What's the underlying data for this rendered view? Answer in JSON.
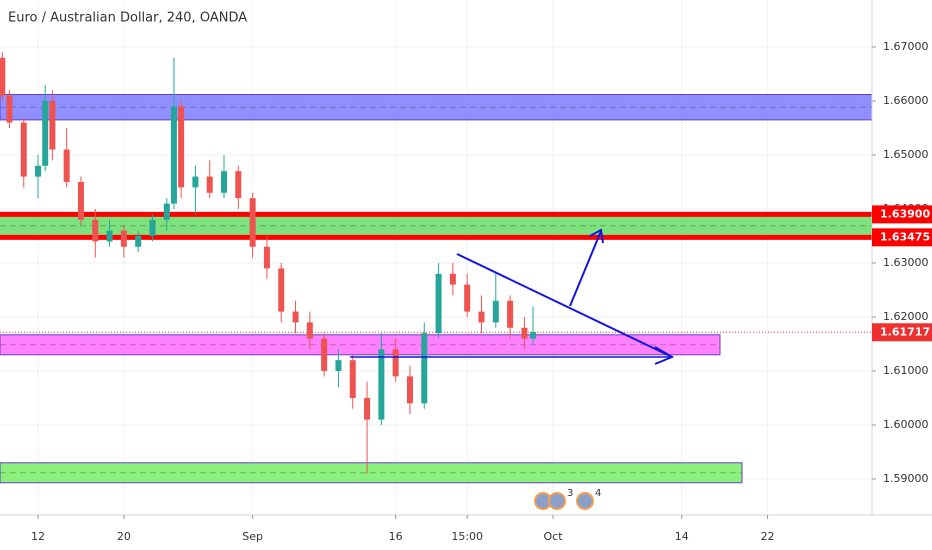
{
  "chart_data": {
    "type": "candlestick",
    "title": "Euro / Australian Dollar, 240, OANDA",
    "x": [
      -2.5,
      -2,
      -1,
      0,
      0.5,
      1,
      2,
      3,
      4,
      5,
      6,
      7,
      8,
      9,
      9.5,
      10,
      11,
      12,
      13,
      14,
      15,
      16,
      17,
      18,
      19,
      20,
      21,
      22,
      23,
      24,
      25,
      26,
      27,
      28,
      29,
      30,
      31,
      32,
      33,
      34,
      34.6
    ],
    "open": [
      1.668,
      1.661,
      1.656,
      1.646,
      1.648,
      1.66,
      1.651,
      1.645,
      1.638,
      1.634,
      1.636,
      1.633,
      1.635,
      1.638,
      1.641,
      1.659,
      1.644,
      1.646,
      1.643,
      1.647,
      1.642,
      1.633,
      1.629,
      1.621,
      1.619,
      1.616,
      1.61,
      1.612,
      1.605,
      1.601,
      1.614,
      1.609,
      1.604,
      1.617,
      1.628,
      1.626,
      1.621,
      1.619,
      1.623,
      1.618,
      1.616
    ],
    "high": [
      1.669,
      1.662,
      1.657,
      1.65,
      1.663,
      1.662,
      1.655,
      1.646,
      1.64,
      1.638,
      1.637,
      1.636,
      1.639,
      1.642,
      1.668,
      1.66,
      1.648,
      1.649,
      1.65,
      1.648,
      1.643,
      1.635,
      1.63,
      1.623,
      1.621,
      1.617,
      1.614,
      1.613,
      1.608,
      1.617,
      1.616,
      1.611,
      1.619,
      1.63,
      1.63,
      1.628,
      1.624,
      1.628,
      1.624,
      1.62,
      1.622
    ],
    "low": [
      1.66,
      1.655,
      1.644,
      1.642,
      1.647,
      1.649,
      1.644,
      1.637,
      1.631,
      1.633,
      1.631,
      1.632,
      1.634,
      1.636,
      1.64,
      1.642,
      1.639,
      1.642,
      1.642,
      1.64,
      1.631,
      1.627,
      1.619,
      1.617,
      1.614,
      1.609,
      1.607,
      1.603,
      1.591,
      1.6,
      1.608,
      1.602,
      1.603,
      1.616,
      1.624,
      1.62,
      1.617,
      1.618,
      1.616,
      1.614,
      1.615
    ],
    "close": [
      1.661,
      1.656,
      1.646,
      1.648,
      1.66,
      1.651,
      1.645,
      1.638,
      1.634,
      1.636,
      1.633,
      1.635,
      1.638,
      1.641,
      1.659,
      1.644,
      1.646,
      1.643,
      1.647,
      1.642,
      1.633,
      1.629,
      1.621,
      1.619,
      1.616,
      1.61,
      1.612,
      1.605,
      1.601,
      1.614,
      1.609,
      1.604,
      1.617,
      1.628,
      1.626,
      1.621,
      1.619,
      1.623,
      1.618,
      1.616,
      1.6172
    ],
    "up_color": "#26a69a",
    "down_color": "#ef5350",
    "xlim": [
      -2.66,
      58.3
    ],
    "xticks": [
      {
        "value": 0,
        "label": "12"
      },
      {
        "value": 6,
        "label": "20"
      },
      {
        "value": 15,
        "label": "Sep"
      },
      {
        "value": 25,
        "label": "16"
      },
      {
        "value": 30,
        "label": "15:00"
      },
      {
        "value": 36,
        "label": "Oct"
      },
      {
        "value": 45,
        "label": "14"
      },
      {
        "value": 51,
        "label": "22"
      }
    ],
    "ylim": [
      1.58333,
      1.6787
    ],
    "yticks": [
      {
        "value": 1.59,
        "label": "1.59000"
      },
      {
        "value": 1.6,
        "label": "1.60000"
      },
      {
        "value": 1.61,
        "label": "1.61000"
      },
      {
        "value": 1.62,
        "label": "1.62000"
      },
      {
        "value": 1.63,
        "label": "1.63000"
      },
      {
        "value": 1.64,
        "label": "1.64000"
      },
      {
        "value": 1.65,
        "label": "1.65000"
      },
      {
        "value": 1.66,
        "label": "1.66000"
      },
      {
        "value": 1.67,
        "label": "1.67000"
      }
    ],
    "grid": true,
    "zones": [
      {
        "low": 1.6565,
        "high": 1.6612,
        "color": "#7b7bff"
      },
      {
        "low": 1.6348,
        "high": 1.639,
        "color": "#66dd66"
      },
      {
        "low": 1.613,
        "high": 1.6167,
        "color": "#ff6bff"
      },
      {
        "low": 1.5893,
        "high": 1.593,
        "color": "#77ee66"
      }
    ],
    "price_labels": [
      {
        "value": 1.639,
        "label": "1.63900",
        "color": "#ff0000"
      },
      {
        "value": 1.63475,
        "label": "1.63475",
        "color": "#ff0000"
      },
      {
        "value": 1.61717,
        "label": "1.61717",
        "color": "#ef3030"
      }
    ],
    "events": [
      "3",
      "4"
    ]
  }
}
